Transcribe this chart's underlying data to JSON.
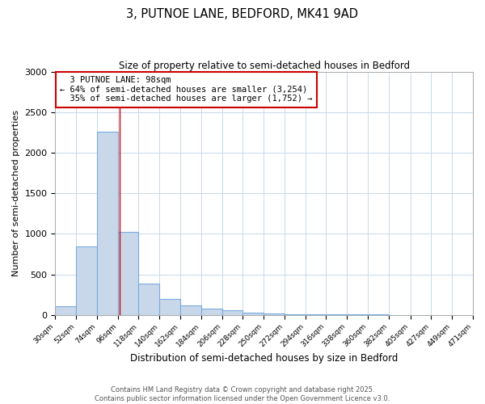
{
  "title": "3, PUTNOE LANE, BEDFORD, MK41 9AD",
  "subtitle": "Size of property relative to semi-detached houses in Bedford",
  "xlabel": "Distribution of semi-detached houses by size in Bedford",
  "ylabel": "Number of semi-detached properties",
  "property_size": 98,
  "property_label": "3 PUTNOE LANE: 98sqm",
  "pct_smaller": 64,
  "pct_smaller_n": "3,254",
  "pct_larger": 35,
  "pct_larger_n": "1,752",
  "bin_labels": [
    "30sqm",
    "52sqm",
    "74sqm",
    "96sqm",
    "118sqm",
    "140sqm",
    "162sqm",
    "184sqm",
    "206sqm",
    "228sqm",
    "250sqm",
    "272sqm",
    "294sqm",
    "316sqm",
    "338sqm",
    "360sqm",
    "382sqm",
    "405sqm",
    "427sqm",
    "449sqm",
    "471sqm"
  ],
  "bin_edges": [
    30,
    52,
    74,
    96,
    118,
    140,
    162,
    184,
    206,
    228,
    250,
    272,
    294,
    316,
    338,
    360,
    382,
    405,
    427,
    449,
    471
  ],
  "bar_values": [
    110,
    845,
    2260,
    1020,
    390,
    200,
    120,
    80,
    55,
    30,
    20,
    5,
    5,
    3,
    3,
    3,
    0,
    0,
    0,
    0
  ],
  "bar_color": "#c8d8ea",
  "bar_edge_color": "#7aabe0",
  "property_line_color": "#cc0000",
  "grid_color": "#c8d8ea",
  "background_color": "#ffffff",
  "footer_text": "Contains HM Land Registry data © Crown copyright and database right 2025.\nContains public sector information licensed under the Open Government Licence v3.0.",
  "ylim": [
    0,
    3000
  ],
  "yticks": [
    0,
    500,
    1000,
    1500,
    2000,
    2500,
    3000
  ]
}
